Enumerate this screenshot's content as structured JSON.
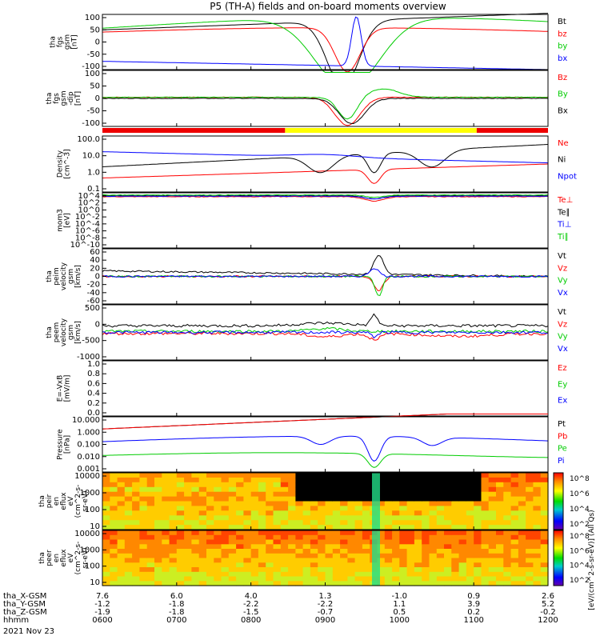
{
  "title": "P5 (TH-A) fields and on-board moments overview",
  "footer": {
    "rows": [
      {
        "label": "tha_X-GSM",
        "values": [
          "7.6",
          "6.0",
          "4.0",
          "1.3",
          "-1.0",
          "0.9",
          "2.6"
        ]
      },
      {
        "label": "tha_Y-GSM",
        "values": [
          "-1.2",
          "-1.8",
          "-2.2",
          "-2.2",
          "1.1",
          "3.9",
          "5.2"
        ]
      },
      {
        "label": "tha_Z-GSM",
        "values": [
          "-1.9",
          "-1.8",
          "-1.5",
          "-0.7",
          "0.5",
          "0.2",
          "-0.2"
        ]
      },
      {
        "label": "hhmm",
        "values": [
          "0600",
          "0700",
          "0800",
          "0900",
          "1000",
          "1100",
          "1200"
        ]
      }
    ],
    "date": "2021 Nov 23"
  },
  "colorbar_label": "[eV/(cm^2-s-sr-eV)] (All Qs)",
  "chart_data": [
    {
      "type": "line",
      "id": "fgs",
      "ylabel": [
        "tha",
        "fgs",
        "gsm",
        "[nT]"
      ],
      "yticks": [
        "100",
        "50",
        "0",
        "-50",
        "-100"
      ],
      "ylim": [
        -100,
        100
      ],
      "legend": [
        {
          "name": "Bt",
          "color": "#000000"
        },
        {
          "name": "bz",
          "color": "#ff0000"
        },
        {
          "name": "by",
          "color": "#00cc00"
        },
        {
          "name": "bx",
          "color": "#0000ff"
        }
      ]
    },
    {
      "type": "line",
      "id": "fgs_dip",
      "ylabel": [
        "tha",
        "fgs",
        "gsm",
        "-dip",
        "[nT]"
      ],
      "yticks": [
        "100",
        "50",
        "0",
        "-50",
        "-100"
      ],
      "ylim": [
        -125,
        125
      ],
      "legend": [
        {
          "name": "Bz",
          "color": "#ff0000"
        },
        {
          "name": "By",
          "color": "#00cc00"
        },
        {
          "name": "Bx",
          "color": "#000000"
        }
      ]
    },
    {
      "type": "line",
      "id": "density",
      "ylabel": [
        "Density",
        "[cm^-3]"
      ],
      "yticks": [
        "100.0",
        "10.0",
        "1.0",
        "0.1"
      ],
      "scale": "log",
      "legend": [
        {
          "name": "Ne",
          "color": "#ff0000"
        },
        {
          "name": "Ni",
          "color": "#000000"
        },
        {
          "name": "Npot",
          "color": "#0000ff"
        }
      ]
    },
    {
      "type": "line",
      "id": "temp",
      "ylabel": [
        "mom3",
        "[eV]"
      ],
      "yticks": [
        "10^4",
        "10^2",
        "10^0",
        "10^-2",
        "10^-4",
        "10^-6",
        "10^-8",
        "10^-10"
      ],
      "scale": "log",
      "legend": [
        {
          "name": "Te⊥",
          "color": "#ff0000"
        },
        {
          "name": "Te∥",
          "color": "#000000"
        },
        {
          "name": "Ti⊥",
          "color": "#0000ff"
        },
        {
          "name": "Ti∥",
          "color": "#00cc00"
        }
      ]
    },
    {
      "type": "line",
      "id": "peim",
      "ylabel": [
        "tha",
        "peim",
        "velocity",
        "gsm",
        "[km/s]"
      ],
      "yticks": [
        "60",
        "40",
        "20",
        "0",
        "-20",
        "-40",
        "-60"
      ],
      "ylim": [
        -60,
        60
      ],
      "legend": [
        {
          "name": "Vt",
          "color": "#000000"
        },
        {
          "name": "Vz",
          "color": "#ff0000"
        },
        {
          "name": "Vy",
          "color": "#00cc00"
        },
        {
          "name": "Vx",
          "color": "#0000ff"
        }
      ]
    },
    {
      "type": "line",
      "id": "peem",
      "ylabel": [
        "tha",
        "peem",
        "velocity",
        "gsm",
        "[km/s]"
      ],
      "yticks": [
        "500",
        "0",
        "-500",
        "-1000"
      ],
      "ylim": [
        -1000,
        1000
      ],
      "legend": [
        {
          "name": "Vt",
          "color": "#000000"
        },
        {
          "name": "Vz",
          "color": "#ff0000"
        },
        {
          "name": "Vy",
          "color": "#00cc00"
        },
        {
          "name": "Vx",
          "color": "#0000ff"
        }
      ]
    },
    {
      "type": "line",
      "id": "efield",
      "ylabel": [
        "E=-VxB",
        "[mV/m]"
      ],
      "yticks": [
        "1.0",
        "0.8",
        "0.6",
        "0.4",
        "0.2",
        "0.0"
      ],
      "ylim": [
        0,
        1
      ],
      "legend": [
        {
          "name": "Ez",
          "color": "#ff0000"
        },
        {
          "name": "Ey",
          "color": "#00cc00"
        },
        {
          "name": "Ex",
          "color": "#0000ff"
        }
      ]
    },
    {
      "type": "line",
      "id": "pressure",
      "ylabel": [
        "Pressure",
        "[nPa]"
      ],
      "yticks": [
        "10.000",
        "1.000",
        "0.100",
        "0.010",
        "0.001"
      ],
      "scale": "log",
      "legend": [
        {
          "name": "Pt",
          "color": "#000000"
        },
        {
          "name": "Pb",
          "color": "#ff0000"
        },
        {
          "name": "Pe",
          "color": "#00cc00"
        },
        {
          "name": "Pi",
          "color": "#0000ff"
        }
      ]
    },
    {
      "type": "heatmap",
      "id": "peir",
      "ylabel": [
        "tha",
        "peir",
        "en",
        "eflux",
        "eV",
        "(cm^2-s-",
        "sr-eV)"
      ],
      "yticks": [
        "10000",
        "1000",
        "100",
        "10"
      ],
      "colorbar_ticks": [
        "10^8",
        "10^6",
        "10^4",
        "10^2"
      ]
    },
    {
      "type": "heatmap",
      "id": "peer",
      "ylabel": [
        "tha",
        "peer",
        "en",
        "eflux",
        "eV",
        "(cm^2-s-",
        "sr-eV)"
      ],
      "yticks": [
        "10000",
        "1000",
        "100",
        "10"
      ],
      "colorbar_ticks": [
        "10^8",
        "10^6",
        "10^4",
        "10^2"
      ]
    }
  ]
}
